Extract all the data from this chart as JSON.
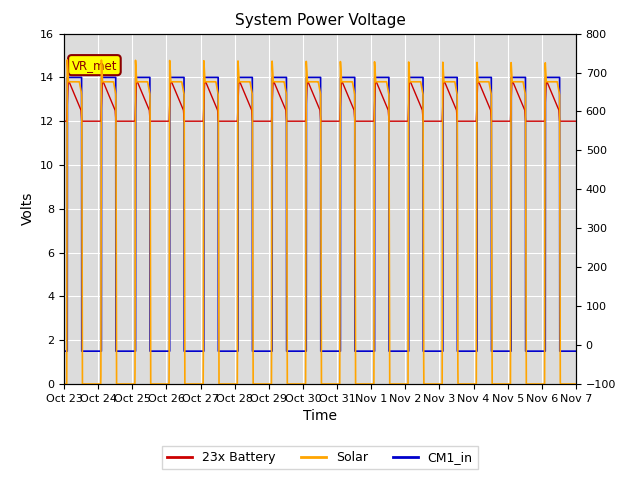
{
  "title": "System Power Voltage",
  "xlabel": "Time",
  "ylabel": "Volts",
  "ylim_left": [
    0,
    16
  ],
  "ylim_right": [
    -100,
    800
  ],
  "yticks_left": [
    0,
    2,
    4,
    6,
    8,
    10,
    12,
    14,
    16
  ],
  "yticks_right": [
    -100,
    0,
    100,
    200,
    300,
    400,
    500,
    600,
    700,
    800
  ],
  "xtick_labels": [
    "Oct 23",
    "Oct 24",
    "Oct 25",
    "Oct 26",
    "Oct 27",
    "Oct 28",
    "Oct 29",
    "Oct 30",
    "Oct 31",
    "Nov 1",
    "Nov 2",
    "Nov 3",
    "Nov 4",
    "Nov 5",
    "Nov 6",
    "Nov 7"
  ],
  "bg_color": "#DCDCDC",
  "grid_color": "#FFFFFF",
  "battery_color": "#CC0000",
  "solar_color": "#FFA500",
  "cm1_color": "#0000CC",
  "legend_items": [
    "23x Battery",
    "Solar",
    "CM1_in"
  ],
  "n_days": 15,
  "figsize": [
    6.4,
    4.8
  ],
  "dpi": 100
}
